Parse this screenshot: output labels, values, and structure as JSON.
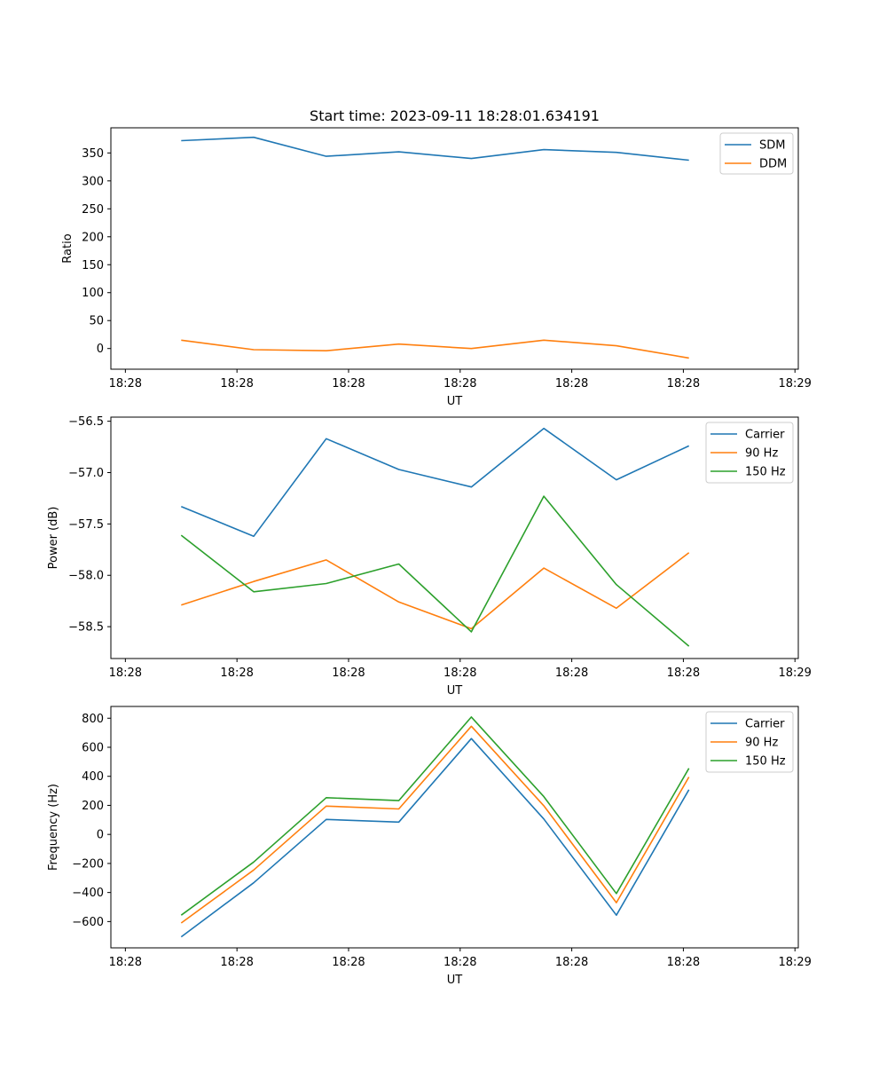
{
  "figure_title": "Start time: 2023-09-11 18:28:01.634191",
  "chart_data": [
    {
      "type": "line",
      "title": "Start time: 2023-09-11 18:28:01.634191",
      "xlabel": "UT",
      "ylabel": "Ratio",
      "x_tick_labels": [
        "18:28",
        "18:28",
        "18:28",
        "18:28",
        "18:28",
        "18:28",
        "18:29"
      ],
      "x_tick_positions": [
        0,
        1,
        2,
        3,
        4,
        5,
        6
      ],
      "x": [
        0.5,
        1.15,
        1.8,
        2.45,
        3.1,
        3.75,
        4.4,
        5.05
      ],
      "xlim": [
        -0.13,
        6.03
      ],
      "ylim": [
        -37,
        395
      ],
      "y_ticks": [
        0,
        50,
        100,
        150,
        200,
        250,
        300,
        350
      ],
      "legend_position": "top-right",
      "series": [
        {
          "name": "SDM",
          "color": "#1f77b4",
          "values": [
            372,
            378,
            344,
            352,
            340,
            356,
            351,
            337
          ]
        },
        {
          "name": "DDM",
          "color": "#ff7f0e",
          "values": [
            15,
            -2,
            -4,
            8,
            0,
            15,
            5,
            -17
          ]
        }
      ]
    },
    {
      "type": "line",
      "title": "",
      "xlabel": "UT",
      "ylabel": "Power (dB)",
      "x_tick_labels": [
        "18:28",
        "18:28",
        "18:28",
        "18:28",
        "18:28",
        "18:28",
        "18:29"
      ],
      "x_tick_positions": [
        0,
        1,
        2,
        3,
        4,
        5,
        6
      ],
      "x": [
        0.5,
        1.15,
        1.8,
        2.45,
        3.1,
        3.75,
        4.4,
        5.05
      ],
      "xlim": [
        -0.13,
        6.03
      ],
      "ylim": [
        -58.81,
        -56.46
      ],
      "y_ticks": [
        -58.5,
        -58.0,
        -57.5,
        -57.0,
        -56.5
      ],
      "y_tick_labels": [
        "−58.5",
        "−58.0",
        "−57.5",
        "−57.0",
        "−56.5"
      ],
      "legend_position": "top-right",
      "series": [
        {
          "name": "Carrier",
          "color": "#1f77b4",
          "values": [
            -57.33,
            -57.62,
            -56.67,
            -56.97,
            -57.14,
            -56.57,
            -57.07,
            -56.74
          ]
        },
        {
          "name": "90 Hz",
          "color": "#ff7f0e",
          "values": [
            -58.29,
            -58.06,
            -57.85,
            -58.26,
            -58.52,
            -57.93,
            -58.32,
            -57.78
          ]
        },
        {
          "name": "150 Hz",
          "color": "#2ca02c",
          "values": [
            -57.61,
            -58.16,
            -58.08,
            -57.89,
            -58.55,
            -57.23,
            -58.09,
            -58.69
          ]
        }
      ]
    },
    {
      "type": "line",
      "title": "",
      "xlabel": "UT",
      "ylabel": "Frequency (Hz)",
      "x_tick_labels": [
        "18:28",
        "18:28",
        "18:28",
        "18:28",
        "18:28",
        "18:28",
        "18:29"
      ],
      "x_tick_positions": [
        0,
        1,
        2,
        3,
        4,
        5,
        6
      ],
      "x": [
        0.5,
        1.15,
        1.8,
        2.45,
        3.1,
        3.75,
        4.4,
        5.05
      ],
      "xlim": [
        -0.13,
        6.03
      ],
      "ylim": [
        -781,
        881
      ],
      "y_ticks": [
        -600,
        -400,
        -200,
        0,
        200,
        400,
        600,
        800
      ],
      "y_tick_labels": [
        "−600",
        "−400",
        "−200",
        "0",
        "200",
        "400",
        "600",
        "800"
      ],
      "legend_position": "top-right",
      "series": [
        {
          "name": "Carrier",
          "color": "#1f77b4",
          "values": [
            -705,
            -333,
            103,
            85,
            660,
            106,
            -556,
            308
          ]
        },
        {
          "name": "90 Hz",
          "color": "#ff7f0e",
          "values": [
            -610,
            -245,
            195,
            175,
            745,
            197,
            -470,
            395
          ]
        },
        {
          "name": "150 Hz",
          "color": "#2ca02c",
          "values": [
            -556,
            -190,
            253,
            233,
            808,
            260,
            -407,
            455
          ]
        }
      ]
    }
  ]
}
